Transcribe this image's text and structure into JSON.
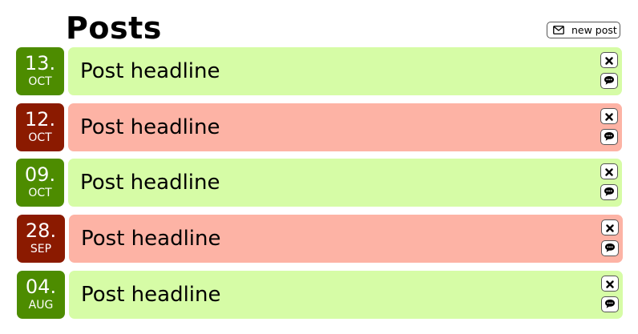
{
  "header": {
    "title": "Posts",
    "new_post_label": "new post"
  },
  "colors": {
    "approved_date": "#4d8c00",
    "approved_card": "#d6fca6",
    "rejected_date": "#8b1a00",
    "rejected_card": "#fdb3a5"
  },
  "posts": [
    {
      "day": "13.",
      "month": "OCT",
      "headline": "Post headline",
      "status": "approved"
    },
    {
      "day": "12.",
      "month": "OCT",
      "headline": "Post headline",
      "status": "rejected"
    },
    {
      "day": "09.",
      "month": "OCT",
      "headline": "Post headline",
      "status": "approved"
    },
    {
      "day": "28.",
      "month": "SEP",
      "headline": "Post headline",
      "status": "rejected"
    },
    {
      "day": "04.",
      "month": "AUG",
      "headline": "Post headline",
      "status": "approved"
    }
  ]
}
